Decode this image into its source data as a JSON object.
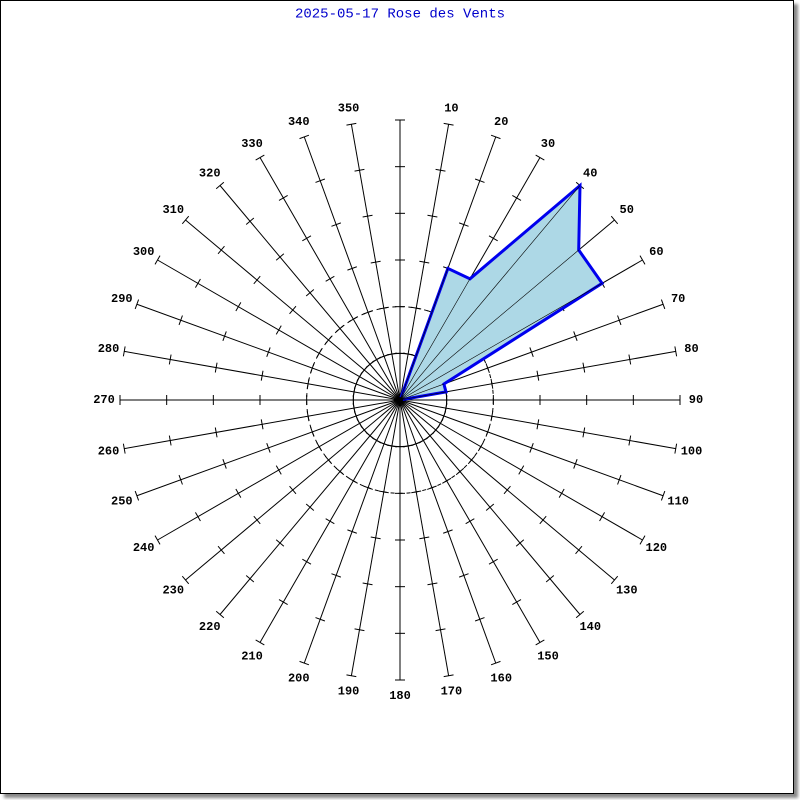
{
  "chart_data": {
    "type": "windrose",
    "title": "2025-05-17 Rose des Vents",
    "categories": [
      null,
      "10",
      "20",
      "30",
      "40",
      "50",
      "60",
      "70",
      "80",
      "90",
      "100",
      "110",
      "120",
      "130",
      "140",
      "150",
      "160",
      "170",
      "180",
      "190",
      "200",
      "210",
      "220",
      "230",
      "240",
      "250",
      "260",
      "270",
      "280",
      "290",
      "300",
      "310",
      "320",
      "330",
      "340",
      "350"
    ],
    "values": [
      0,
      0,
      3,
      3,
      6,
      5,
      5,
      1,
      1,
      0,
      0,
      0,
      0,
      0,
      0,
      0,
      0,
      0,
      0,
      0,
      0,
      0,
      0,
      0,
      0,
      0,
      0,
      0,
      0,
      0,
      0,
      0,
      0,
      0,
      0,
      0
    ],
    "color": "#0000ee",
    "fill": "#add8e6",
    "rlim": [
      0,
      6
    ],
    "rticks": [
      1,
      2,
      3,
      4,
      5,
      6
    ],
    "rings": [
      1,
      2
    ]
  }
}
